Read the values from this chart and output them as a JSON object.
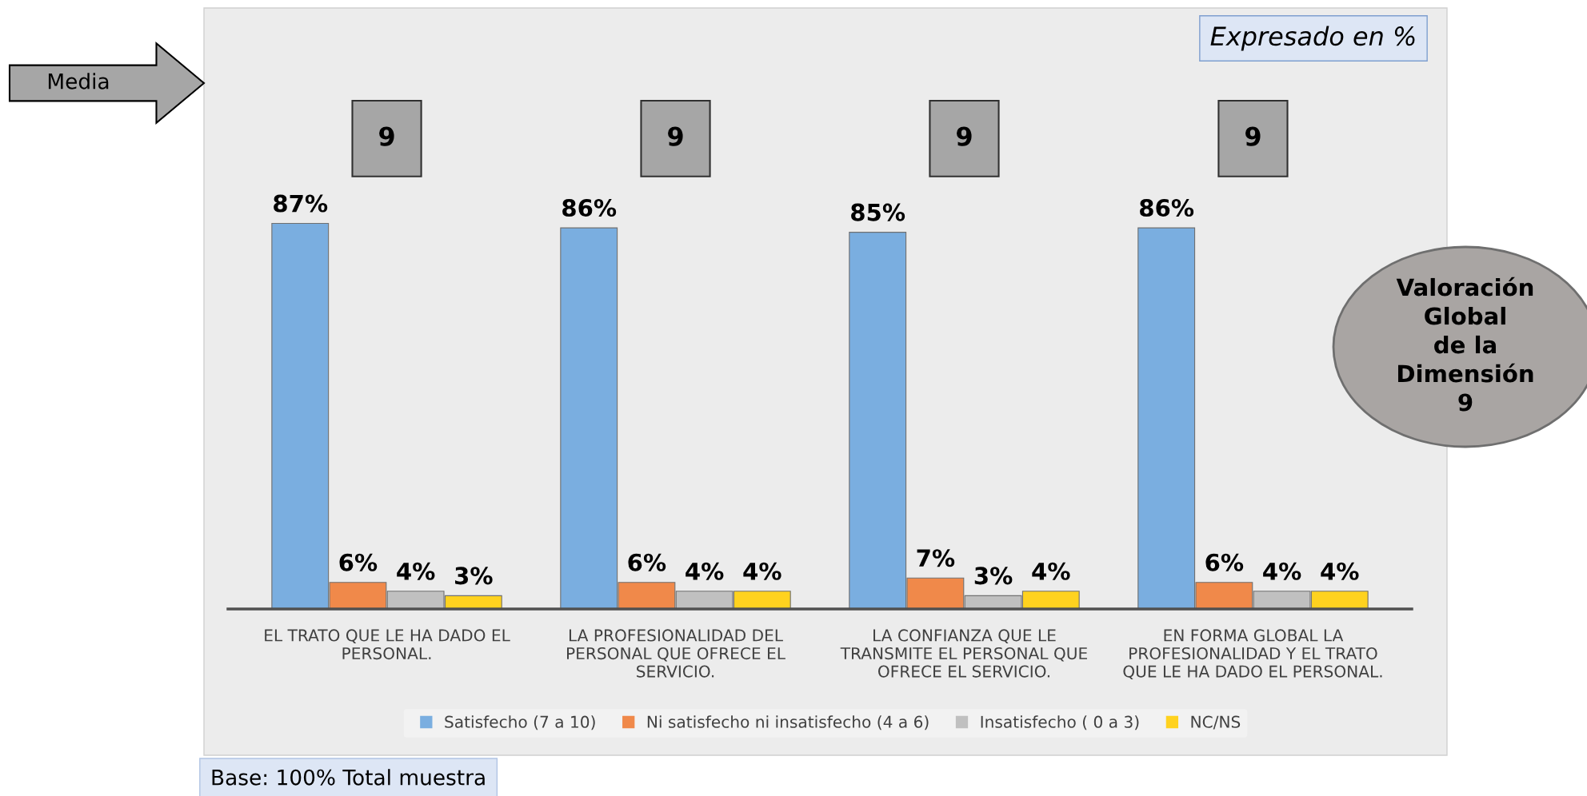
{
  "chart_data": {
    "type": "bar",
    "categories": [
      "EL TRATO QUE LE HA DADO EL\nPERSONAL.",
      "LA PROFESIONALIDAD DEL\nPERSONAL QUE OFRECE EL\nSERVICIO.",
      "LA CONFIANZA QUE LE\nTRANSMITE EL PERSONAL QUE\nOFRECE EL SERVICIO.",
      "EN FORMA GLOBAL LA\nPROFESIONALIDAD Y EL TRATO\nQUE LE HA DADO EL PERSONAL."
    ],
    "series": [
      {
        "name": "Satisfecho (7 a 10)",
        "color": "#7aaee0",
        "values": [
          87,
          86,
          85,
          86
        ],
        "value_labels": [
          "87%",
          "86%",
          "85%",
          "86%"
        ]
      },
      {
        "name": "Ni satisfecho ni insatisfecho (4 a 6)",
        "color": "#f0894a",
        "values": [
          6,
          6,
          7,
          6
        ],
        "value_labels": [
          "6%",
          "6%",
          "7%",
          "6%"
        ]
      },
      {
        "name": "Insatisfecho ( 0 a 3)",
        "color": "#c0c0c0",
        "values": [
          4,
          4,
          3,
          4
        ],
        "value_labels": [
          "4%",
          "4%",
          "3%",
          "4%"
        ]
      },
      {
        "name": "NC/NS",
        "color": "#ffd21f",
        "values": [
          3,
          4,
          4,
          4
        ],
        "value_labels": [
          "3%",
          "4%",
          "4%",
          "4%"
        ]
      }
    ],
    "legend": "bottom",
    "annotations": [
      "Expresado en %",
      "Media",
      "Valoración\nGlobal\nde la\nDimensión\n9",
      "Base: 100% Total muestra",
      "9",
      "9",
      "9",
      "9"
    ]
  }
}
